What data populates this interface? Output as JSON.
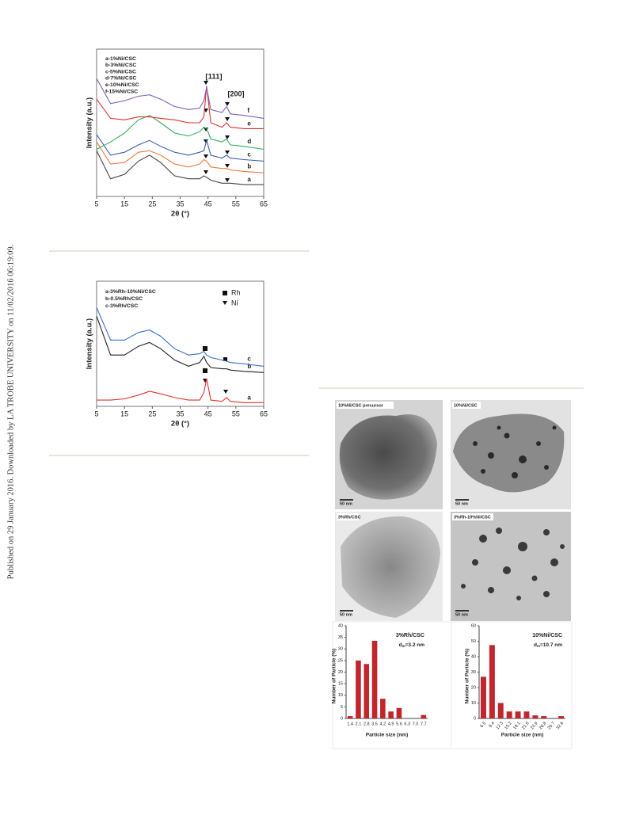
{
  "side_note": "Published on 29 January 2016. Downloaded by LA TROBE UNIVERSITY on 11/02/2016 06:19:09.",
  "chart_data": [
    {
      "type": "line",
      "x_label": "2θ (°)",
      "y_label": "Intensity (a.u.)",
      "legend": [
        "a-1%Ni/CSC",
        "b-3%Ni/CSC",
        "c-5%Ni/CSC",
        "d-7%Ni/CSC",
        "e-10%Ni/CSC",
        "f-15%Ni/CSC"
      ],
      "annotations": [
        "[111]",
        "[200]"
      ],
      "xlim": [
        5,
        65
      ],
      "xticks": [
        5,
        15,
        25,
        35,
        45,
        55,
        65
      ],
      "ylim": [
        0,
        100
      ],
      "x": [
        5,
        10,
        15,
        20,
        24,
        28,
        33,
        38,
        42,
        43.5,
        44.5,
        46,
        50,
        51.7,
        53,
        58,
        65
      ],
      "series": [
        {
          "name": "a",
          "color": "#444444",
          "values": [
            31,
            12,
            15,
            24,
            28,
            23,
            14,
            12,
            12,
            14,
            13,
            11,
            9,
            9,
            9,
            8,
            8
          ]
        },
        {
          "name": "b",
          "color": "#f07a3c",
          "values": [
            37,
            22,
            23,
            30,
            31,
            28,
            22,
            20,
            22,
            25,
            24,
            20,
            19,
            19,
            18,
            17,
            16
          ]
        },
        {
          "name": "c",
          "color": "#3a5da8",
          "values": [
            42,
            28,
            30,
            35,
            38,
            34,
            30,
            28,
            30,
            31,
            38,
            28,
            26,
            28,
            26,
            25,
            24
          ]
        },
        {
          "name": "d",
          "color": "#2eae5a",
          "values": [
            32,
            37,
            43,
            52,
            55,
            50,
            43,
            41,
            44,
            47,
            46,
            39,
            37,
            39,
            35,
            34,
            32
          ]
        },
        {
          "name": "e",
          "color": "#e0312c",
          "values": [
            66,
            53,
            52,
            54,
            54,
            53,
            52,
            50,
            50,
            54,
            75,
            50,
            47,
            50,
            47,
            46,
            46
          ]
        },
        {
          "name": "f",
          "color": "#7d5fc0",
          "values": [
            80,
            63,
            65,
            68,
            69,
            66,
            61,
            59,
            60,
            65,
            74,
            59,
            57,
            61,
            56,
            55,
            53
          ]
        }
      ]
    },
    {
      "type": "line",
      "x_label": "2θ (°)",
      "y_label": "Intensity (a.u.)",
      "legend": [
        "a-3%Rh-10%Ni/CSC",
        "b-0.5%Rh/CSC",
        "c-3%Rh/CSC"
      ],
      "marker_legend": [
        "Rh",
        "Ni"
      ],
      "xlim": [
        5,
        65
      ],
      "xticks": [
        5,
        15,
        25,
        35,
        45,
        55,
        65
      ],
      "ylim": [
        0,
        100
      ],
      "x": [
        5,
        10,
        15,
        20,
        24,
        28,
        33,
        38,
        42,
        43.5,
        44.5,
        46,
        50,
        51.7,
        53,
        58,
        65
      ],
      "series": [
        {
          "name": "a",
          "color": "#e0312c",
          "values": [
            5,
            5,
            6,
            9,
            12,
            10,
            7,
            5,
            5,
            11,
            22,
            5,
            4,
            7,
            4,
            3,
            3
          ]
        },
        {
          "name": "b",
          "color": "#222222",
          "values": [
            72,
            41,
            41,
            48,
            51,
            46,
            37,
            32,
            35,
            40,
            35,
            31,
            30,
            30,
            29,
            28,
            27
          ]
        },
        {
          "name": "c",
          "color": "#3a6fd0",
          "values": [
            79,
            53,
            53,
            59,
            61,
            56,
            46,
            41,
            42,
            44,
            41,
            39,
            37,
            36,
            35,
            34,
            32
          ]
        }
      ]
    },
    {
      "type": "bar",
      "title": "3%Rh/CSC",
      "d_symbol": "d",
      "d_sub": "m",
      "d_value": "=3.2 nm",
      "x_label": "Particle size (nm)",
      "y_label": "Number of Particle (%)",
      "color": "#c0262c",
      "categories": [
        "1.4",
        "2.1",
        "2.8",
        "3.5",
        "4.2",
        "4.9",
        "5.6",
        "6.3",
        "7.0",
        "7.7"
      ],
      "values": [
        1,
        25,
        23.5,
        33.5,
        8.5,
        3,
        4.5,
        0,
        0,
        1.5
      ],
      "ylim": [
        0,
        40
      ],
      "yticks": [
        0,
        5,
        10,
        15,
        20,
        25,
        30,
        35,
        40
      ]
    },
    {
      "type": "bar",
      "title": "10%Ni/CSC",
      "d_symbol": "d",
      "d_sub": "m",
      "d_value": "=10.7 nm",
      "x_label": "Particle size (nm)",
      "y_label": "Number of Particle (%)",
      "color": "#c0262c",
      "categories": [
        "6.5",
        "9.4",
        "12.3",
        "15.2",
        "18.1",
        "21.0",
        "23.9",
        "26.8",
        "29.7",
        "32.6"
      ],
      "values": [
        27,
        47.5,
        10,
        4.5,
        4.5,
        4.5,
        2,
        1.5,
        0,
        1.5
      ],
      "ylim": [
        0,
        60
      ],
      "yticks": [
        0,
        10,
        20,
        30,
        40,
        50,
        60
      ]
    }
  ],
  "images": [
    {
      "label": "10%Ni/CSC precursor",
      "scale": "50 nm"
    },
    {
      "label": "10%Ni/CSC",
      "scale": "50 nm"
    },
    {
      "label": "3%Rh/CSC",
      "scale": "50 nm"
    },
    {
      "label": "3%Rh-10%Ni/CSC",
      "scale": "50 nm"
    }
  ]
}
